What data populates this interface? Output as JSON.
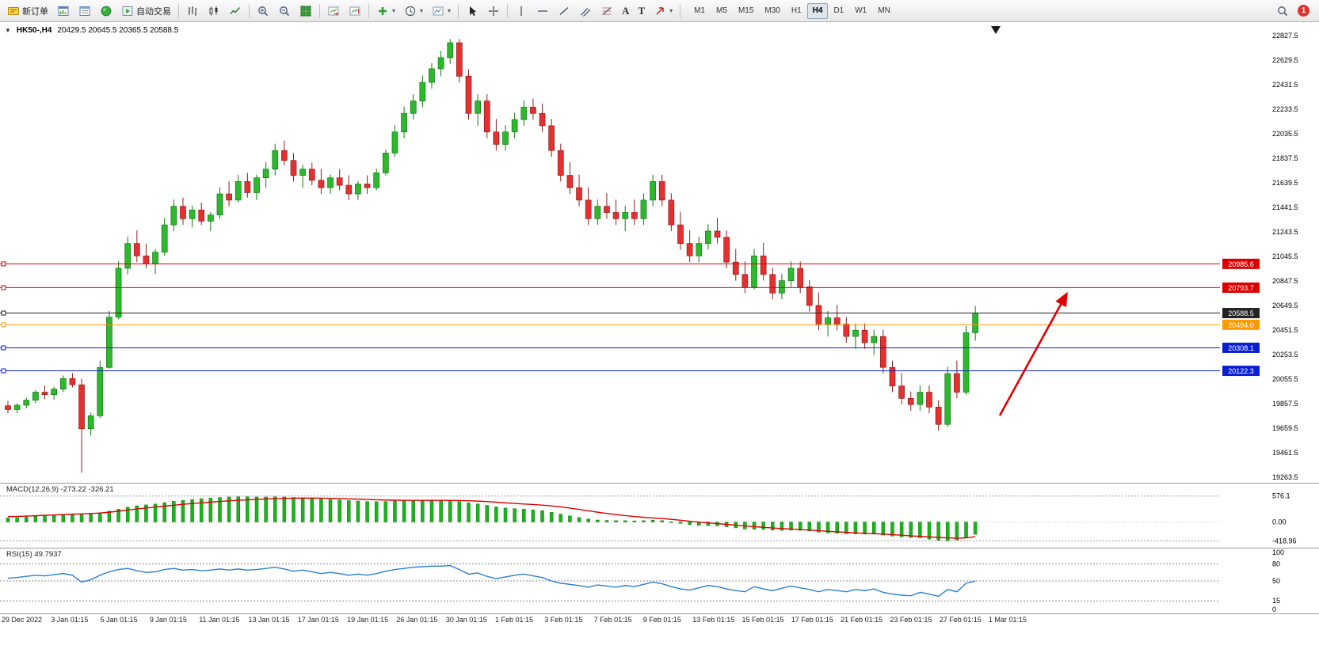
{
  "toolbar": {
    "new_order": "新订单",
    "auto_trading": "自动交易",
    "text_tool": "A",
    "label_tool": "T",
    "timeframes": [
      "M1",
      "M5",
      "M15",
      "M30",
      "H1",
      "H4",
      "D1",
      "W1",
      "MN"
    ],
    "active_timeframe": "H4",
    "notification_count": "1"
  },
  "icons": {
    "new-order-icon": "yellow-ticket",
    "market-watch-icon": "window-with-bars",
    "data-window-icon": "window-with-lines",
    "navigator-icon": "green-sphere",
    "auto-trading-icon": "green-play",
    "bars-chart-icon": "ohlc-bars",
    "candles-chart-icon": "candlesticks",
    "line-chart-icon": "zigzag-line",
    "zoom-in-icon": "magnifier-plus",
    "zoom-out-icon": "magnifier-minus",
    "tile-windows-icon": "green-grid",
    "auto-scroll-icon": "chart-arrow-right",
    "chart-shift-icon": "chart-arrow-gap",
    "indicators-icon": "green-plus",
    "periods-icon": "clock",
    "templates-icon": "chart-template",
    "cursor-icon": "pointer-arrow",
    "crosshair-icon": "crosshair",
    "vertical-line-icon": "vertical-line",
    "horizontal-line-icon": "horizontal-line",
    "trendline-icon": "diagonal-line",
    "channel-icon": "parallel-diagonals",
    "fibonacci-icon": "fibo-retracement",
    "arrows-tool-icon": "up-right-arrow",
    "search-icon": "magnifier",
    "dropdown-caret": "▾"
  },
  "chart_header": {
    "collapse_icon": "▼",
    "symbol": "HK50-,H4",
    "ohlc": "20429.5 20645.5 20365.5 20588.5"
  },
  "macd_panel": {
    "label": "MACD(12,26,9) -273.22 -326.21"
  },
  "rsi_panel": {
    "label": "RSI(15) 49.7937"
  },
  "chart_data": {
    "type": "candlestick",
    "title": "HK50-,H4",
    "current_bar": {
      "open": 20429.5,
      "high": 20645.5,
      "low": 20365.5,
      "close": 20588.5
    },
    "price_min": 19263.5,
    "price_max": 22827.5,
    "up_color": "#2eb82e",
    "down_color": "#e53030",
    "y_axis_labels": [
      "22827.5",
      "22629.5",
      "22431.5",
      "22233.5",
      "22035.5",
      "21837.5",
      "21639.5",
      "21441.5",
      "21243.5",
      "21045.5",
      "20847.5",
      "20649.5",
      "20451.5",
      "20253.5",
      "20055.5",
      "19857.5",
      "19659.5",
      "19461.5",
      "19263.5"
    ],
    "time_labels": [
      "29 Dec 2022",
      "3 Jan 01:15",
      "5 Jan 01:15",
      "9 Jan 01:15",
      "11 Jan 01:15",
      "13 Jan 01:15",
      "17 Jan 01:15",
      "19 Jan 01:15",
      "26 Jan 01:15",
      "30 Jan 01:15",
      "1 Feb 01:15",
      "3 Feb 01:15",
      "7 Feb 01:15",
      "9 Feb 01:15",
      "13 Feb 01:15",
      "15 Feb 01:15",
      "17 Feb 01:15",
      "21 Feb 01:15",
      "23 Feb 01:15",
      "27 Feb 01:15",
      "1 Mar 01:15"
    ],
    "levels": [
      {
        "price": 20985.6,
        "label": "20985.6",
        "color": "#dd0000"
      },
      {
        "price": 20793.7,
        "label": "20793.7",
        "color": "#dd0000"
      },
      {
        "price": 20588.5,
        "label": "20588.5",
        "color": "#222222",
        "is_current_price": true
      },
      {
        "price": 20494.0,
        "label": "20494.0",
        "color": "#ff9900"
      },
      {
        "price": 20308.1,
        "label": "20308.1",
        "color": "#0a1fd0"
      },
      {
        "price": 20122.3,
        "label": "20122.3",
        "color": "#0a1fd0"
      }
    ],
    "candles": [
      [
        19840,
        19880,
        19780,
        19810
      ],
      [
        19810,
        19860,
        19780,
        19845
      ],
      [
        19845,
        19905,
        19820,
        19885
      ],
      [
        19885,
        19965,
        19860,
        19950
      ],
      [
        19950,
        20005,
        19895,
        19930
      ],
      [
        19930,
        19995,
        19890,
        19975
      ],
      [
        19975,
        20085,
        19950,
        20060
      ],
      [
        20060,
        20105,
        19990,
        20010
      ],
      [
        20010,
        20060,
        19300,
        19655
      ],
      [
        19655,
        19785,
        19600,
        19760
      ],
      [
        19760,
        20205,
        19740,
        20150
      ],
      [
        20150,
        20605,
        20140,
        20555
      ],
      [
        20555,
        21005,
        20540,
        20950
      ],
      [
        20950,
        21205,
        20900,
        21150
      ],
      [
        21150,
        21255,
        21000,
        21050
      ],
      [
        21050,
        21150,
        20950,
        20985
      ],
      [
        20985,
        21105,
        20905,
        21080
      ],
      [
        21080,
        21355,
        21050,
        21300
      ],
      [
        21300,
        21505,
        21250,
        21450
      ],
      [
        21450,
        21520,
        21300,
        21350
      ],
      [
        21350,
        21455,
        21280,
        21420
      ],
      [
        21420,
        21480,
        21300,
        21330
      ],
      [
        21330,
        21405,
        21250,
        21380
      ],
      [
        21380,
        21605,
        21350,
        21550
      ],
      [
        21550,
        21650,
        21450,
        21500
      ],
      [
        21500,
        21705,
        21480,
        21650
      ],
      [
        21650,
        21720,
        21520,
        21560
      ],
      [
        21560,
        21705,
        21500,
        21680
      ],
      [
        21680,
        21805,
        21600,
        21750
      ],
      [
        21750,
        21955,
        21700,
        21900
      ],
      [
        21900,
        21980,
        21780,
        21820
      ],
      [
        21820,
        21880,
        21650,
        21700
      ],
      [
        21700,
        21785,
        21600,
        21750
      ],
      [
        21750,
        21800,
        21620,
        21660
      ],
      [
        21660,
        21750,
        21550,
        21600
      ],
      [
        21600,
        21705,
        21550,
        21680
      ],
      [
        21680,
        21750,
        21580,
        21620
      ],
      [
        21620,
        21700,
        21500,
        21550
      ],
      [
        21550,
        21655,
        21500,
        21630
      ],
      [
        21630,
        21700,
        21550,
        21600
      ],
      [
        21600,
        21755,
        21580,
        21720
      ],
      [
        21720,
        21905,
        21700,
        21880
      ],
      [
        21880,
        22105,
        21850,
        22050
      ],
      [
        22050,
        22255,
        22000,
        22200
      ],
      [
        22200,
        22355,
        22150,
        22300
      ],
      [
        22300,
        22505,
        22250,
        22450
      ],
      [
        22450,
        22605,
        22400,
        22560
      ],
      [
        22560,
        22705,
        22500,
        22650
      ],
      [
        22650,
        22800,
        22600,
        22770
      ],
      [
        22770,
        22800,
        22450,
        22500
      ],
      [
        22500,
        22555,
        22150,
        22200
      ],
      [
        22200,
        22355,
        22100,
        22300
      ],
      [
        22300,
        22355,
        22000,
        22050
      ],
      [
        22050,
        22155,
        21900,
        21950
      ],
      [
        21950,
        22105,
        21900,
        22050
      ],
      [
        22050,
        22205,
        22000,
        22150
      ],
      [
        22150,
        22305,
        22100,
        22250
      ],
      [
        22250,
        22320,
        22150,
        22200
      ],
      [
        22200,
        22280,
        22050,
        22100
      ],
      [
        22100,
        22155,
        21850,
        21900
      ],
      [
        21900,
        21955,
        21650,
        21700
      ],
      [
        21700,
        21805,
        21550,
        21600
      ],
      [
        21600,
        21705,
        21450,
        21500
      ],
      [
        21500,
        21605,
        21300,
        21350
      ],
      [
        21350,
        21505,
        21300,
        21450
      ],
      [
        21450,
        21555,
        21350,
        21400
      ],
      [
        21400,
        21505,
        21300,
        21350
      ],
      [
        21350,
        21455,
        21250,
        21400
      ],
      [
        21400,
        21505,
        21300,
        21350
      ],
      [
        21350,
        21555,
        21300,
        21500
      ],
      [
        21500,
        21705,
        21450,
        21650
      ],
      [
        21650,
        21705,
        21450,
        21500
      ],
      [
        21500,
        21555,
        21250,
        21300
      ],
      [
        21300,
        21405,
        21100,
        21150
      ],
      [
        21150,
        21255,
        21000,
        21050
      ],
      [
        21050,
        21205,
        21000,
        21150
      ],
      [
        21150,
        21305,
        21100,
        21250
      ],
      [
        21250,
        21355,
        21150,
        21200
      ],
      [
        21200,
        21255,
        20950,
        21000
      ],
      [
        21000,
        21105,
        20850,
        20900
      ],
      [
        20900,
        21005,
        20750,
        20800
      ],
      [
        20800,
        21105,
        20780,
        21050
      ],
      [
        21050,
        21155,
        20850,
        20900
      ],
      [
        20900,
        20955,
        20700,
        20750
      ],
      [
        20750,
        20905,
        20700,
        20850
      ],
      [
        20850,
        21005,
        20800,
        20950
      ],
      [
        20950,
        21005,
        20750,
        20800
      ],
      [
        20800,
        20855,
        20600,
        20650
      ],
      [
        20650,
        20755,
        20450,
        20500
      ],
      [
        20500,
        20605,
        20400,
        20550
      ],
      [
        20550,
        20655,
        20450,
        20500
      ],
      [
        20500,
        20555,
        20350,
        20400
      ],
      [
        20400,
        20505,
        20300,
        20450
      ],
      [
        20450,
        20505,
        20300,
        20350
      ],
      [
        20350,
        20455,
        20250,
        20400
      ],
      [
        20400,
        20455,
        20100,
        20150
      ],
      [
        20150,
        20205,
        19950,
        20000
      ],
      [
        20000,
        20105,
        19850,
        19900
      ],
      [
        19900,
        19955,
        19800,
        19850
      ],
      [
        19850,
        20005,
        19800,
        19950
      ],
      [
        19950,
        20005,
        19780,
        19830
      ],
      [
        19830,
        19885,
        19640,
        19690
      ],
      [
        19690,
        20155,
        19670,
        20100
      ],
      [
        20100,
        20205,
        19900,
        19950
      ],
      [
        19950,
        20485,
        19930,
        20430
      ],
      [
        20429.5,
        20645.5,
        20365.5,
        20588.5
      ]
    ],
    "macd": {
      "name": "MACD(12,26,9)",
      "values_text": "-273.22 -326.21",
      "axis_labels": [
        "576.1",
        "0.00",
        "-418.96"
      ],
      "axis_values": [
        576.1,
        0,
        -418.96
      ],
      "scale_max": 800,
      "scale_min": -500,
      "histogram_color": "#1db31d",
      "signal_color": "#e00000",
      "histogram": [
        90,
        100,
        115,
        130,
        140,
        150,
        165,
        175,
        160,
        170,
        200,
        240,
        285,
        330,
        360,
        380,
        400,
        430,
        460,
        480,
        500,
        515,
        530,
        545,
        555,
        560,
        560,
        555,
        555,
        560,
        555,
        545,
        535,
        525,
        510,
        500,
        490,
        475,
        465,
        455,
        450,
        455,
        465,
        475,
        480,
        485,
        485,
        480,
        475,
        455,
        425,
        400,
        370,
        335,
        310,
        295,
        285,
        270,
        250,
        215,
        175,
        135,
        100,
        65,
        45,
        35,
        30,
        30,
        25,
        30,
        40,
        30,
        5,
        -30,
        -60,
        -75,
        -80,
        -85,
        -105,
        -130,
        -155,
        -160,
        -165,
        -180,
        -185,
        -180,
        -185,
        -200,
        -225,
        -240,
        -250,
        -260,
        -265,
        -270,
        -270,
        -290,
        -310,
        -330,
        -345,
        -350,
        -380,
        -405,
        -415,
        -400,
        -350,
        -273.22
      ],
      "signal": [
        120,
        125,
        132,
        140,
        148,
        156,
        165,
        174,
        180,
        188,
        200,
        218,
        240,
        265,
        290,
        312,
        332,
        352,
        372,
        392,
        410,
        426,
        442,
        456,
        470,
        482,
        492,
        502,
        510,
        518,
        524,
        528,
        530,
        530,
        528,
        524,
        520,
        514,
        508,
        500,
        494,
        488,
        484,
        482,
        480,
        480,
        480,
        480,
        480,
        478,
        472,
        464,
        454,
        440,
        426,
        412,
        400,
        388,
        375,
        358,
        336,
        310,
        280,
        248,
        218,
        190,
        165,
        142,
        122,
        104,
        90,
        76,
        60,
        40,
        18,
        -2,
        -20,
        -36,
        -52,
        -70,
        -88,
        -104,
        -118,
        -132,
        -145,
        -156,
        -167,
        -178,
        -192,
        -206,
        -218,
        -230,
        -240,
        -250,
        -258,
        -268,
        -280,
        -294,
        -308,
        -320,
        -330,
        -342,
        -352,
        -360,
        -352,
        -326.21
      ]
    },
    "rsi": {
      "name": "RSI(15)",
      "value_text": "49.7937",
      "axis_labels": [
        "100",
        "80",
        "50",
        "15",
        "0"
      ],
      "axis_values": [
        100,
        80,
        50,
        15,
        0
      ],
      "level_lines": [
        80,
        50,
        15
      ],
      "line_color": "#2a7fd4",
      "values": [
        55,
        56,
        58,
        60,
        59,
        61,
        63,
        60,
        48,
        52,
        60,
        66,
        70,
        72,
        68,
        65,
        66,
        70,
        72,
        69,
        70,
        68,
        69,
        71,
        69,
        71,
        69,
        70,
        72,
        74,
        71,
        67,
        69,
        66,
        63,
        65,
        63,
        60,
        62,
        60,
        63,
        67,
        70,
        72,
        74,
        75,
        76,
        76,
        77,
        70,
        62,
        64,
        58,
        54,
        57,
        60,
        62,
        59,
        56,
        50,
        46,
        44,
        42,
        39,
        43,
        41,
        39,
        42,
        40,
        44,
        48,
        45,
        40,
        36,
        34,
        38,
        42,
        40,
        36,
        33,
        31,
        40,
        36,
        33,
        37,
        41,
        38,
        35,
        31,
        35,
        33,
        31,
        35,
        33,
        36,
        30,
        27,
        25,
        24,
        30,
        27,
        23,
        35,
        31,
        46,
        49.79
      ]
    },
    "arrow_annotation": {
      "color": "#e00000",
      "direction": "up-right"
    }
  }
}
